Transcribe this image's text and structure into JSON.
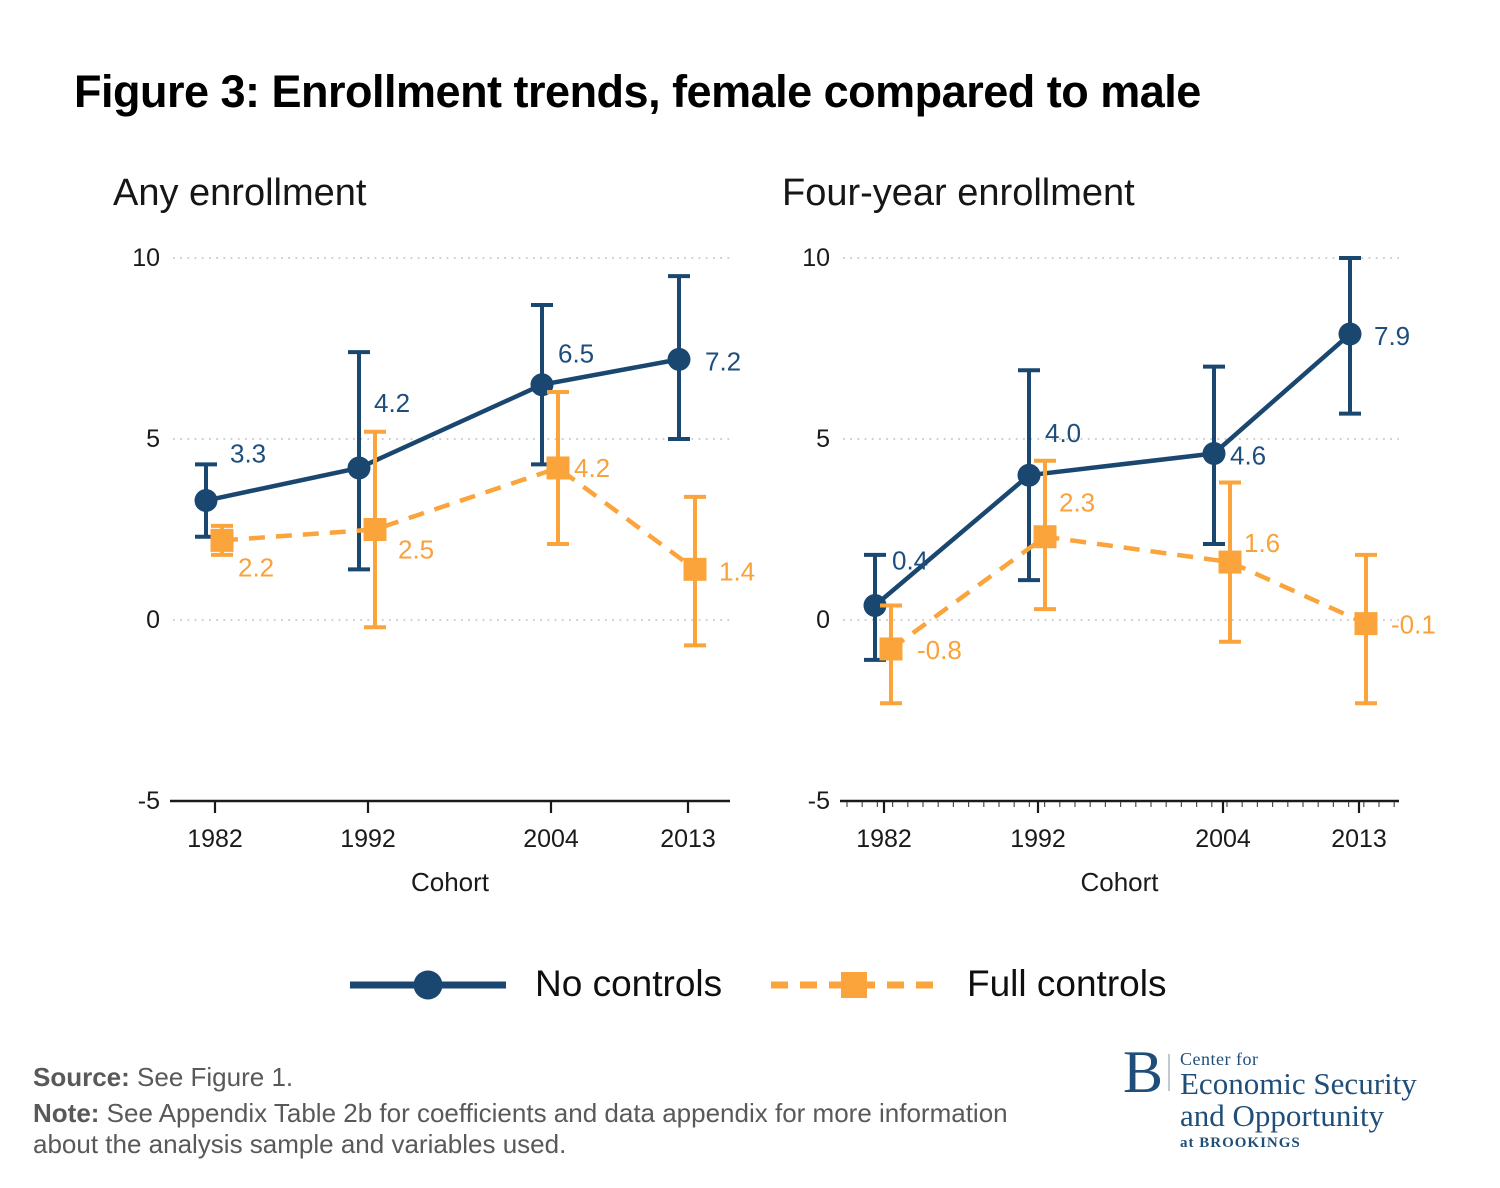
{
  "title": "Figure 3: Enrollment trends, female compared to male",
  "colors": {
    "navy": "#1a476f",
    "orange": "#faa43b",
    "navy_label": "#1e4e7d",
    "orange_label": "#f9a13a",
    "grid": "#c9c9c9",
    "axis": "#1a1a1a",
    "footnote_gray": "#58595b",
    "logo_navy": "#1f4e79"
  },
  "legend": [
    {
      "label": "No controls",
      "color": "#1a476f",
      "marker": "circle",
      "line": "solid"
    },
    {
      "label": "Full controls",
      "color": "#faa43b",
      "marker": "square",
      "line": "dashed"
    }
  ],
  "source": {
    "label": "Source:",
    "text": " See Figure 1."
  },
  "note": {
    "label": "Note:",
    "line1": " See Appendix Table 2b for coefficients and data appendix for more information",
    "line2": "about the analysis sample and variables used."
  },
  "logo": {
    "b": "B",
    "center_for": "Center for",
    "name_line1": "Economic Security",
    "name_line2": "and Opportunity",
    "at_brookings": "at BROOKINGS"
  },
  "chart_data": [
    {
      "type": "line",
      "title": "Any enrollment",
      "xlabel": "Cohort",
      "x": [
        1982,
        1992,
        2004,
        2013
      ],
      "xticklabels": [
        "1982",
        "1992",
        "2004",
        "2013"
      ],
      "ylim": [
        -5,
        10
      ],
      "yticks": [
        {
          "v": 10,
          "label": "10"
        },
        {
          "v": 5,
          "label": "5"
        },
        {
          "v": 0,
          "label": "0"
        },
        {
          "v": -5,
          "label": "-5"
        }
      ],
      "gridlines": [
        10,
        5,
        0
      ],
      "legend_position": "bottom",
      "series": [
        {
          "name": "No controls",
          "color": "#1a476f",
          "label_color": "#1e4e7d",
          "marker": "circle",
          "line": "solid",
          "values": [
            3.3,
            4.2,
            6.5,
            7.2
          ],
          "ci_low": [
            2.3,
            1.4,
            4.3,
            5.0
          ],
          "ci_high": [
            4.3,
            7.4,
            8.7,
            9.5
          ],
          "labels": [
            "3.3",
            "4.2",
            "6.5",
            "7.2"
          ],
          "label_offsets": [
            [
              24,
              -38
            ],
            [
              15,
              -56
            ],
            [
              16,
              -22
            ],
            [
              26,
              11
            ]
          ]
        },
        {
          "name": "Full controls",
          "color": "#faa43b",
          "label_color": "#f9a13a",
          "marker": "square",
          "line": "dashed",
          "values": [
            2.2,
            2.5,
            4.2,
            1.4
          ],
          "ci_low": [
            1.8,
            -0.2,
            2.1,
            -0.7
          ],
          "ci_high": [
            2.6,
            5.2,
            6.3,
            3.4
          ],
          "labels": [
            "2.2",
            "2.5",
            "4.2",
            "1.4"
          ],
          "label_offsets": [
            [
              16,
              36
            ],
            [
              23,
              29
            ],
            [
              16,
              9
            ],
            [
              24,
              11
            ]
          ]
        }
      ]
    },
    {
      "type": "line",
      "title": "Four-year enrollment",
      "xlabel": "Cohort",
      "x": [
        1982,
        1992,
        2004,
        2013
      ],
      "xticklabels": [
        "1982",
        "1992",
        "2004",
        "2013"
      ],
      "ylim": [
        -5,
        10
      ],
      "yticks": [
        {
          "v": 10,
          "label": "10"
        },
        {
          "v": 5,
          "label": "5"
        },
        {
          "v": 0,
          "label": "0"
        },
        {
          "v": -5,
          "label": "-5"
        }
      ],
      "gridlines": [
        10,
        5,
        0
      ],
      "legend_position": "bottom",
      "series": [
        {
          "name": "No controls",
          "color": "#1a476f",
          "label_color": "#1e4e7d",
          "marker": "circle",
          "line": "solid",
          "values": [
            0.4,
            4.0,
            4.6,
            7.9
          ],
          "ci_low": [
            -1.1,
            1.1,
            2.1,
            5.7
          ],
          "ci_high": [
            1.8,
            6.9,
            7.0,
            10.0
          ],
          "labels": [
            "0.4",
            "4.0",
            "4.6",
            "7.9"
          ],
          "label_offsets": [
            [
              17,
              -36
            ],
            [
              16,
              -33
            ],
            [
              16,
              11
            ],
            [
              24,
              11
            ]
          ]
        },
        {
          "name": "Full controls",
          "color": "#faa43b",
          "label_color": "#f9a13a",
          "marker": "square",
          "line": "dashed",
          "values": [
            -0.8,
            2.3,
            1.6,
            -0.1
          ],
          "ci_low": [
            -2.3,
            0.3,
            -0.6,
            -2.3
          ],
          "ci_high": [
            0.4,
            4.4,
            3.8,
            1.8
          ],
          "labels": [
            "-0.8",
            "2.3",
            "1.6",
            "-0.1"
          ],
          "label_offsets": [
            [
              26,
              10
            ],
            [
              14,
              -25
            ],
            [
              14,
              -10
            ],
            [
              25,
              10
            ]
          ]
        }
      ]
    }
  ]
}
